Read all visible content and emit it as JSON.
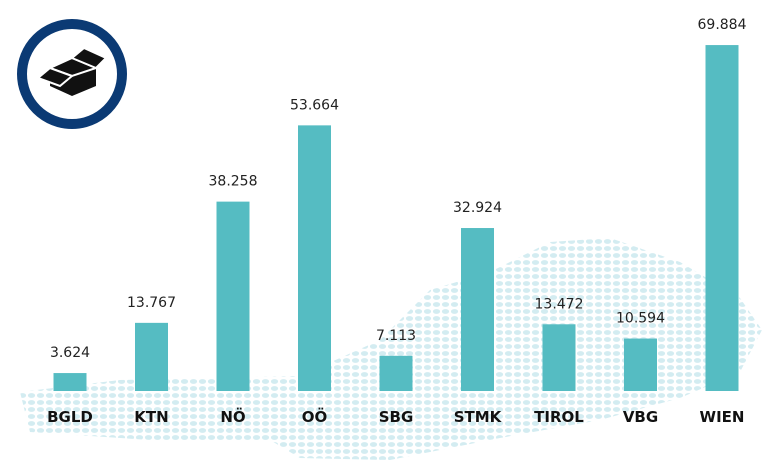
{
  "chart_data": {
    "type": "bar",
    "categories": [
      "BGLD",
      "KTN",
      "NÖ",
      "OÖ",
      "SBG",
      "STMK",
      "TIROL",
      "VBG",
      "WIEN"
    ],
    "values": [
      3.624,
      13.767,
      38.258,
      53.664,
      7.113,
      32.924,
      13.472,
      10.594,
      69.884
    ],
    "color": "#55bcc2"
  }
}
